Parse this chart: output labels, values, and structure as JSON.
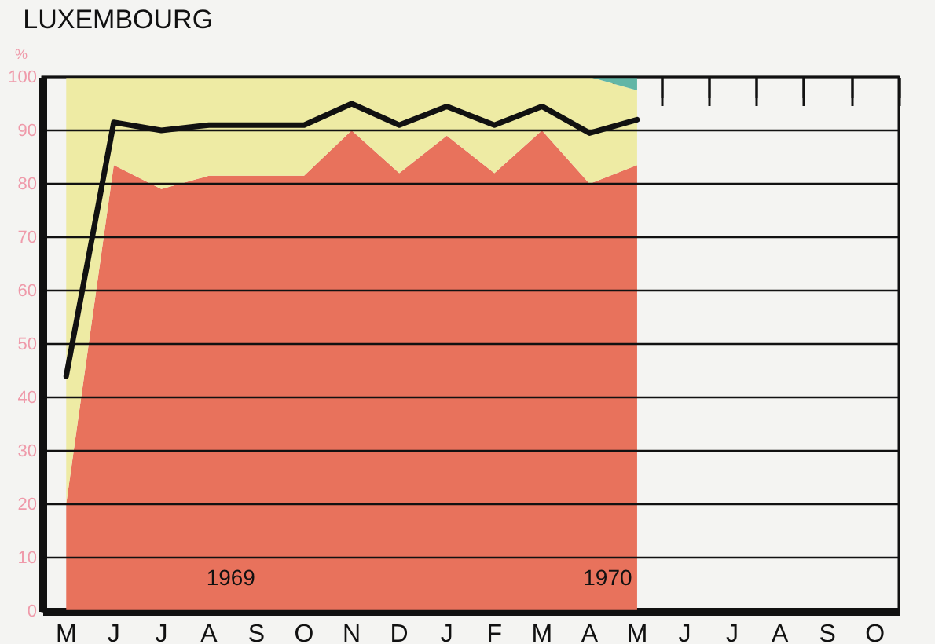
{
  "chart_data": {
    "type": "area",
    "title": "LUXEMBOURG",
    "ylabel": "%",
    "stacked": true,
    "categories": [
      "M",
      "J",
      "J",
      "A",
      "S",
      "O",
      "N",
      "D",
      "J",
      "F",
      "M",
      "A",
      "M",
      "J",
      "J",
      "A",
      "S",
      "O"
    ],
    "series": [
      {
        "color": "#e8725c",
        "values": [
          20,
          83.5,
          79,
          81.5,
          81.5,
          81.5,
          90,
          82,
          89,
          82,
          90,
          80,
          83.5,
          null,
          null,
          null,
          null,
          null
        ]
      },
      {
        "color": "#eeeba4",
        "values": [
          80,
          16.5,
          21,
          18.5,
          18.5,
          18.5,
          10,
          18,
          11,
          18,
          10,
          20,
          14,
          null,
          null,
          null,
          null,
          null
        ]
      },
      {
        "color": "#62b6a6",
        "values": [
          0,
          0,
          0,
          0,
          0,
          0,
          0,
          0,
          0,
          0,
          0,
          0,
          2.5,
          null,
          null,
          null,
          null,
          null
        ]
      },
      {
        "type": "line",
        "color": "#111111",
        "values": [
          44,
          91.5,
          90,
          91,
          91,
          91,
          95,
          91,
          94.5,
          91,
          94.5,
          89.5,
          92,
          null,
          null,
          null,
          null,
          null
        ]
      }
    ],
    "ylim": [
      0,
      100
    ],
    "yticks": [
      0,
      10,
      20,
      30,
      40,
      50,
      60,
      70,
      80,
      90,
      100
    ],
    "grid": "y",
    "annotations": [
      "1969",
      "1970"
    ]
  }
}
